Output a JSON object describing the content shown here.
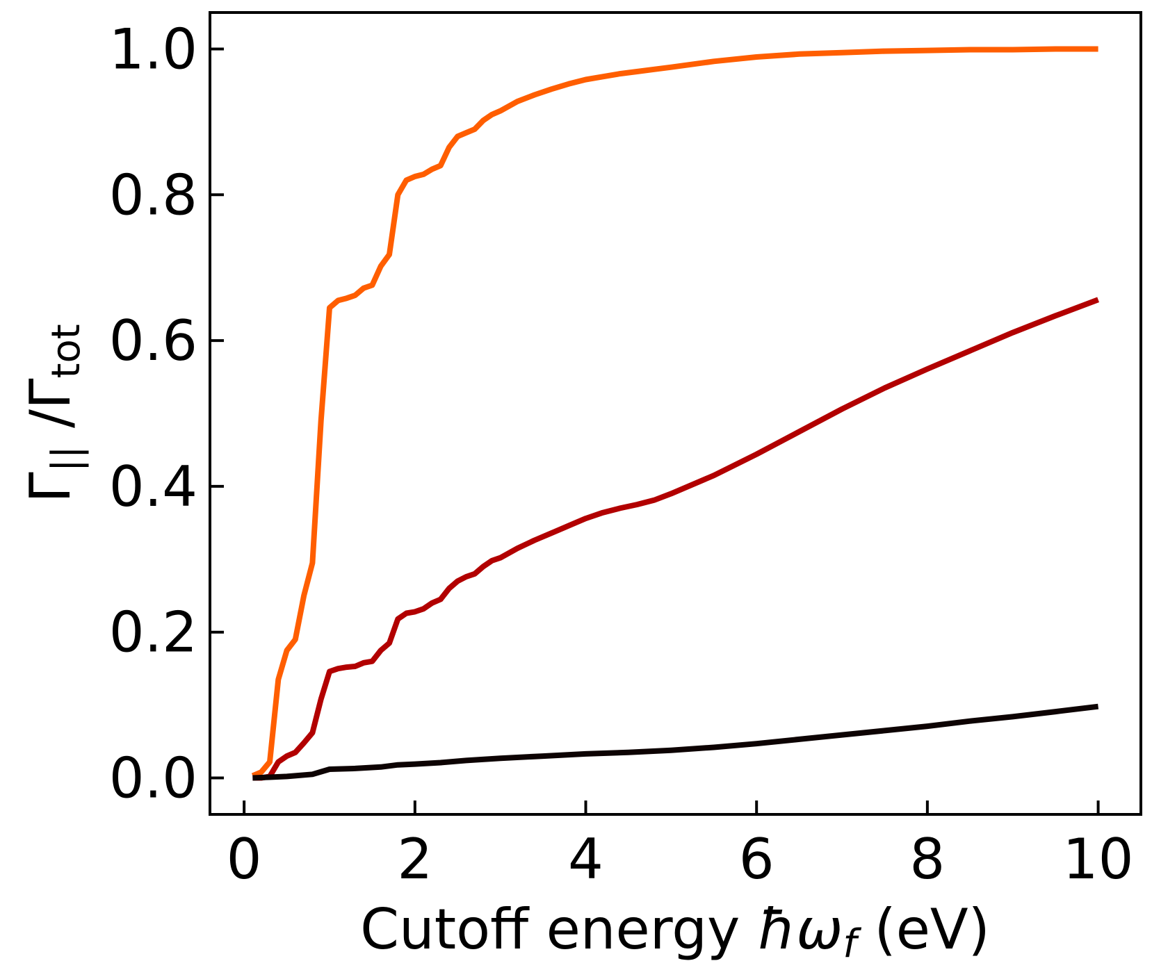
{
  "chart_data": {
    "type": "line",
    "title": "",
    "xlabel": {
      "prefix": "Cutoff energy ",
      "symbol": "ħω",
      "subscript": "f",
      "suffix": " (eV)"
    },
    "ylabel": {
      "numerator_symbol": "Γ",
      "numerator_subscript": "||",
      "separator": " /",
      "denominator_symbol": "Γ",
      "denominator_subscript": "tot"
    },
    "xlim": [
      -0.4,
      10.5
    ],
    "ylim": [
      -0.05,
      1.05
    ],
    "xticks": [
      0,
      2,
      4,
      6,
      8,
      10
    ],
    "xtick_labels": [
      "0",
      "2",
      "4",
      "6",
      "8",
      "10"
    ],
    "yticks": [
      0.0,
      0.2,
      0.4,
      0.6,
      0.8,
      1.0
    ],
    "ytick_labels": [
      "0.0",
      "0.2",
      "0.4",
      "0.6",
      "0.8",
      "1.0"
    ],
    "grid": false,
    "legend": "none",
    "series": [
      {
        "color": "#ff5e00",
        "x": [
          0.1,
          0.2,
          0.3,
          0.4,
          0.5,
          0.6,
          0.7,
          0.8,
          0.9,
          1.0,
          1.1,
          1.2,
          1.3,
          1.4,
          1.5,
          1.6,
          1.7,
          1.8,
          1.9,
          2.0,
          2.1,
          2.2,
          2.3,
          2.4,
          2.5,
          2.6,
          2.7,
          2.8,
          2.9,
          3.0,
          3.2,
          3.4,
          3.6,
          3.8,
          4.0,
          4.2,
          4.4,
          4.6,
          4.8,
          5.0,
          5.5,
          6.0,
          6.5,
          7.0,
          7.5,
          8.0,
          8.5,
          9.0,
          9.5,
          10.0
        ],
        "y": [
          0.003,
          0.008,
          0.022,
          0.135,
          0.175,
          0.19,
          0.25,
          0.295,
          0.49,
          0.645,
          0.655,
          0.658,
          0.662,
          0.672,
          0.676,
          0.702,
          0.718,
          0.8,
          0.82,
          0.825,
          0.828,
          0.835,
          0.84,
          0.865,
          0.88,
          0.885,
          0.89,
          0.902,
          0.91,
          0.915,
          0.928,
          0.937,
          0.945,
          0.952,
          0.958,
          0.962,
          0.966,
          0.969,
          0.972,
          0.975,
          0.983,
          0.989,
          0.993,
          0.995,
          0.997,
          0.998,
          0.999,
          0.999,
          1.0,
          1.0
        ]
      },
      {
        "color": "#b20000",
        "x": [
          0.1,
          0.2,
          0.3,
          0.4,
          0.5,
          0.6,
          0.7,
          0.8,
          0.9,
          1.0,
          1.1,
          1.2,
          1.3,
          1.4,
          1.5,
          1.6,
          1.7,
          1.8,
          1.9,
          2.0,
          2.1,
          2.2,
          2.3,
          2.4,
          2.5,
          2.6,
          2.7,
          2.8,
          2.9,
          3.0,
          3.2,
          3.4,
          3.6,
          3.8,
          4.0,
          4.2,
          4.4,
          4.6,
          4.8,
          5.0,
          5.5,
          6.0,
          6.5,
          7.0,
          7.5,
          8.0,
          8.5,
          9.0,
          9.5,
          10.0
        ],
        "y": [
          0.0,
          0.0,
          0.002,
          0.022,
          0.03,
          0.035,
          0.048,
          0.062,
          0.108,
          0.146,
          0.15,
          0.152,
          0.153,
          0.158,
          0.16,
          0.175,
          0.185,
          0.218,
          0.226,
          0.228,
          0.232,
          0.24,
          0.245,
          0.26,
          0.27,
          0.276,
          0.28,
          0.29,
          0.298,
          0.302,
          0.315,
          0.326,
          0.336,
          0.346,
          0.356,
          0.364,
          0.37,
          0.375,
          0.381,
          0.39,
          0.415,
          0.444,
          0.475,
          0.506,
          0.535,
          0.561,
          0.586,
          0.611,
          0.634,
          0.656
        ]
      },
      {
        "color": "#0d0303",
        "x": [
          0.1,
          0.3,
          0.5,
          0.8,
          1.0,
          1.3,
          1.6,
          1.8,
          2.0,
          2.3,
          2.6,
          3.0,
          3.5,
          4.0,
          4.5,
          5.0,
          5.5,
          6.0,
          6.5,
          7.0,
          7.5,
          8.0,
          8.5,
          9.0,
          9.5,
          10.0
        ],
        "y": [
          0.0,
          0.001,
          0.002,
          0.005,
          0.012,
          0.013,
          0.015,
          0.018,
          0.019,
          0.021,
          0.024,
          0.027,
          0.03,
          0.033,
          0.035,
          0.038,
          0.042,
          0.047,
          0.053,
          0.059,
          0.065,
          0.071,
          0.078,
          0.084,
          0.091,
          0.098
        ]
      }
    ]
  }
}
